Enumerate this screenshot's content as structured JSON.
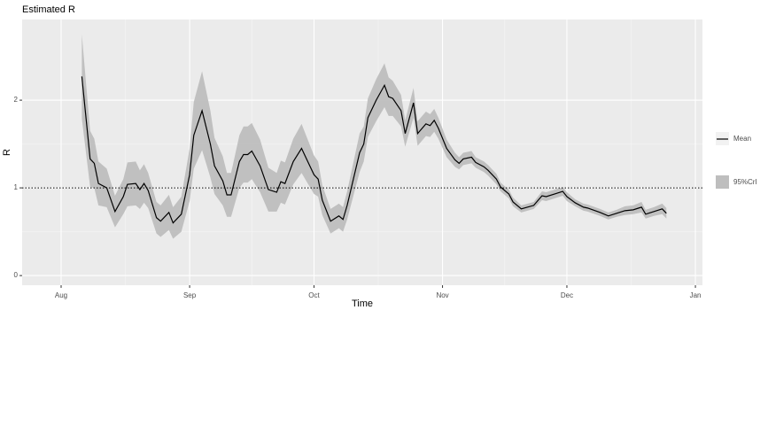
{
  "chart_data": {
    "type": "line",
    "title": "Estimated R",
    "x_label": "Time",
    "y_label": "R",
    "x": [
      5,
      7,
      8,
      9,
      11,
      13,
      15,
      16,
      18,
      19,
      20,
      21,
      23,
      24,
      26,
      27,
      29,
      31,
      32,
      34,
      36,
      37,
      39,
      40,
      41,
      43,
      44,
      45,
      46,
      48,
      50,
      52,
      53,
      54,
      56,
      58,
      59,
      61,
      62,
      63,
      65,
      67,
      68,
      69,
      72,
      73,
      74,
      76,
      78,
      79,
      80,
      82,
      83,
      85,
      86,
      88,
      89,
      90,
      91,
      93,
      95,
      96,
      97,
      99,
      100,
      102,
      103,
      105,
      106,
      108,
      109,
      111,
      114,
      116,
      117,
      119,
      121,
      122,
      124,
      126,
      127,
      130,
      132,
      134,
      136,
      138,
      140,
      141,
      143,
      145,
      146
    ],
    "series": [
      {
        "name": "Mean",
        "color": "#000000",
        "values": [
          2.27,
          1.33,
          1.28,
          1.05,
          1.0,
          0.73,
          0.9,
          1.04,
          1.05,
          0.98,
          1.05,
          0.97,
          0.66,
          0.62,
          0.72,
          0.6,
          0.7,
          1.15,
          1.6,
          1.88,
          1.5,
          1.25,
          1.08,
          0.92,
          0.92,
          1.3,
          1.38,
          1.38,
          1.42,
          1.25,
          0.98,
          0.95,
          1.07,
          1.05,
          1.3,
          1.45,
          1.35,
          1.15,
          1.1,
          0.86,
          0.62,
          0.68,
          0.64,
          0.8,
          1.4,
          1.5,
          1.8,
          2.0,
          2.17,
          2.04,
          2.02,
          1.88,
          1.62,
          1.97,
          1.62,
          1.73,
          1.71,
          1.77,
          1.68,
          1.45,
          1.32,
          1.28,
          1.33,
          1.35,
          1.29,
          1.24,
          1.2,
          1.1,
          1.01,
          0.93,
          0.84,
          0.76,
          0.8,
          0.91,
          0.9,
          0.93,
          0.96,
          0.9,
          0.83,
          0.78,
          0.77,
          0.72,
          0.68,
          0.71,
          0.74,
          0.75,
          0.78,
          0.7,
          0.73,
          0.76,
          0.71
        ]
      },
      {
        "name": "95%CrI",
        "color": "#bebebe",
        "upper": [
          2.75,
          1.65,
          1.56,
          1.3,
          1.22,
          0.91,
          1.1,
          1.29,
          1.3,
          1.2,
          1.27,
          1.17,
          0.84,
          0.8,
          0.92,
          0.78,
          0.9,
          1.45,
          1.98,
          2.33,
          1.88,
          1.57,
          1.36,
          1.17,
          1.17,
          1.6,
          1.7,
          1.7,
          1.74,
          1.55,
          1.23,
          1.17,
          1.31,
          1.29,
          1.56,
          1.73,
          1.61,
          1.37,
          1.3,
          1.03,
          0.76,
          0.82,
          0.78,
          0.96,
          1.62,
          1.7,
          2.02,
          2.24,
          2.42,
          2.26,
          2.22,
          2.06,
          1.77,
          2.14,
          1.76,
          1.87,
          1.84,
          1.9,
          1.8,
          1.55,
          1.4,
          1.35,
          1.4,
          1.42,
          1.35,
          1.3,
          1.26,
          1.16,
          1.06,
          0.98,
          0.89,
          0.8,
          0.84,
          0.96,
          0.95,
          0.98,
          1.01,
          0.95,
          0.87,
          0.82,
          0.81,
          0.76,
          0.72,
          0.75,
          0.79,
          0.8,
          0.84,
          0.75,
          0.78,
          0.82,
          0.77
        ],
        "lower": [
          1.79,
          1.01,
          1.0,
          0.8,
          0.78,
          0.55,
          0.7,
          0.79,
          0.8,
          0.76,
          0.83,
          0.77,
          0.48,
          0.44,
          0.52,
          0.42,
          0.5,
          0.85,
          1.22,
          1.43,
          1.12,
          0.93,
          0.8,
          0.67,
          0.67,
          1.0,
          1.06,
          1.06,
          1.1,
          0.95,
          0.73,
          0.73,
          0.83,
          0.81,
          1.04,
          1.17,
          1.09,
          0.93,
          0.9,
          0.69,
          0.48,
          0.54,
          0.5,
          0.64,
          1.18,
          1.3,
          1.58,
          1.76,
          1.92,
          1.82,
          1.82,
          1.7,
          1.47,
          1.8,
          1.48,
          1.59,
          1.58,
          1.64,
          1.56,
          1.35,
          1.24,
          1.21,
          1.26,
          1.28,
          1.23,
          1.18,
          1.14,
          1.04,
          0.96,
          0.88,
          0.79,
          0.72,
          0.76,
          0.86,
          0.85,
          0.88,
          0.91,
          0.85,
          0.79,
          0.74,
          0.73,
          0.68,
          0.64,
          0.67,
          0.69,
          0.7,
          0.72,
          0.65,
          0.68,
          0.7,
          0.65
        ]
      }
    ],
    "xlim": [
      -9.4,
      154.7
    ],
    "xticks": [
      {
        "value": 0,
        "label": "Aug"
      },
      {
        "value": 31,
        "label": "Sep"
      },
      {
        "value": 61,
        "label": "Oct"
      },
      {
        "value": 92,
        "label": "Nov"
      },
      {
        "value": 122,
        "label": "Dec"
      },
      {
        "value": 153,
        "label": "Jan"
      }
    ],
    "ylim": [
      -0.11,
      2.92
    ],
    "yticks": [
      0,
      1,
      2
    ],
    "hline": 1,
    "grid": true,
    "legend_position": "right"
  }
}
